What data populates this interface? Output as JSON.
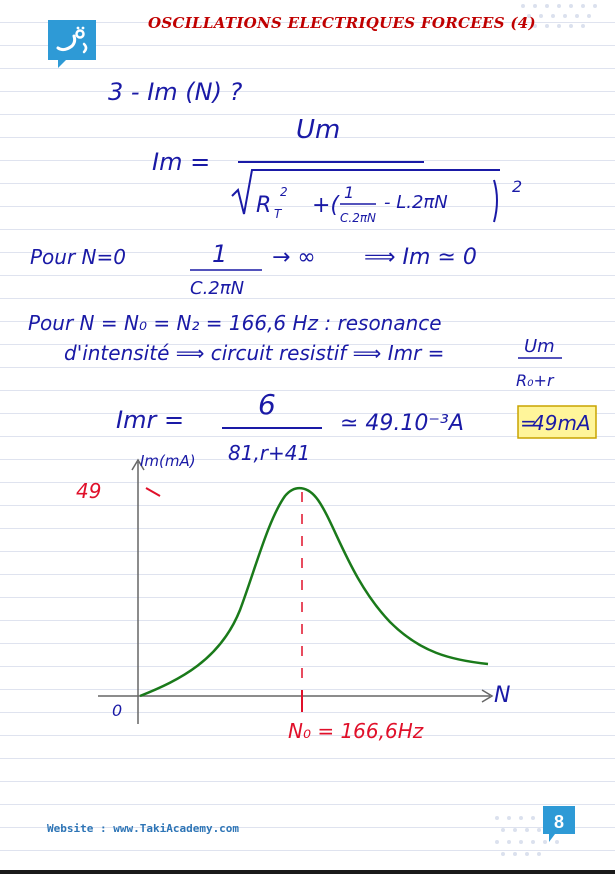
{
  "header": {
    "title": "OSCILLATIONS ELECTRIQUES FORCEES (4)",
    "logo_icon": "takiacademy-logo-icon"
  },
  "notes": {
    "question": "3 - Im (N) ?",
    "formula_lhs": "Im =",
    "formula_num": "Um",
    "formula_den_a": "R",
    "formula_den_sub": "T",
    "formula_den_sup": "2",
    "formula_den_b": "+(",
    "formula_frac_num": "1",
    "formula_frac_den": "C.2πN",
    "formula_den_c": "- L.2πN",
    "formula_den_pow": "2",
    "case1_label": "Pour N=0",
    "case1_frac_num": "1",
    "case1_frac_den": "C.2πN",
    "case1_result_a": "→ ∞",
    "case1_result_b": "⟹ Im ≃ 0",
    "case2_line1": "Pour N = N₀ = N₂ = 166,6 Hz : resonance",
    "case2_line2": "d'intensité ⟹ circuit resistif ⟹ Imr =",
    "case2_frac_num": "Um",
    "case2_frac_den": "R₀+r",
    "calc_lhs": "Imr =",
    "calc_num": "6",
    "calc_den": "81,r+41",
    "calc_approx": "≃ 49.10⁻³A",
    "calc_eq": "=",
    "calc_boxed": "49mA"
  },
  "graph": {
    "y_axis_label": "Im(mA)",
    "x_axis_label": "N",
    "origin_label": "0",
    "y_peak_label": "49",
    "x_resonance_label": "N₀ = 166,6Hz",
    "curve_color": "#1a7a1a",
    "mark_color": "#e0102a",
    "ink_color": "#1a1aa6"
  },
  "chart_data": {
    "type": "line",
    "x": [
      "0",
      "N₀ = 166,6Hz"
    ],
    "series": [
      {
        "values": [
          0,
          49
        ]
      }
    ],
    "xlabel": "N",
    "ylabel": "Im(mA)",
    "annotations": [
      "49",
      "N₀ = 166,6Hz"
    ]
  },
  "footer": {
    "website": "Website : www.TakiAcademy.com",
    "page_number": "8"
  }
}
